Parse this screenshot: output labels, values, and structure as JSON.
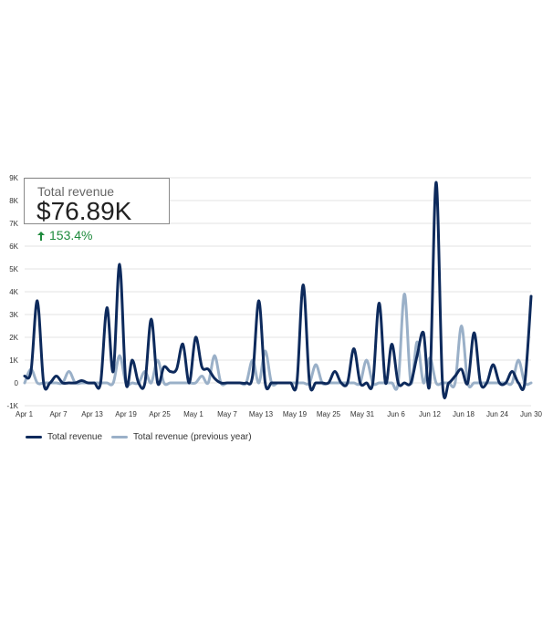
{
  "kpi": {
    "title": "Total revenue",
    "value": "$76.89K",
    "change": "153.4%",
    "change_color": "#1e8a3c"
  },
  "colors": {
    "current": "#0d2a5c",
    "previous": "#9ab0c8",
    "grid": "#e3e3e3"
  },
  "chart_data": {
    "type": "line",
    "title": "",
    "xlabel": "",
    "ylabel": "",
    "ylim": [
      -1000,
      9000
    ],
    "y_ticks": [
      "-1K",
      "0",
      "1K",
      "2K",
      "3K",
      "4K",
      "5K",
      "6K",
      "7K",
      "8K",
      "9K"
    ],
    "x_ticks": [
      "Apr 1",
      "Apr 7",
      "Apr 13",
      "Apr 19",
      "Apr 25",
      "May 1",
      "May 7",
      "May 13",
      "May 19",
      "May 25",
      "May 31",
      "Jun 6",
      "Jun 12",
      "Jun 18",
      "Jun 24",
      "Jun 30"
    ],
    "grid": "horizontal",
    "legend_position": "bottom-left",
    "series": [
      {
        "name": "Total revenue",
        "values": [
          300,
          500,
          3600,
          0,
          0,
          300,
          0,
          0,
          0,
          100,
          0,
          0,
          0,
          3300,
          500,
          5200,
          0,
          1000,
          0,
          0,
          2800,
          0,
          700,
          500,
          600,
          1700,
          0,
          2000,
          700,
          600,
          200,
          0,
          0,
          0,
          0,
          0,
          300,
          3600,
          0,
          0,
          0,
          0,
          0,
          0,
          4300,
          0,
          0,
          0,
          0,
          500,
          0,
          0,
          1500,
          0,
          0,
          0,
          3500,
          0,
          1700,
          0,
          0,
          0,
          1200,
          2200,
          0,
          8800,
          0,
          0,
          300,
          600,
          0,
          2200,
          0,
          0,
          800,
          0,
          0,
          500,
          0,
          0,
          3800
        ]
      },
      {
        "name": "Total revenue (previous year)",
        "values": [
          0,
          600,
          0,
          0,
          0,
          0,
          0,
          500,
          0,
          0,
          0,
          0,
          0,
          0,
          0,
          1200,
          0,
          0,
          0,
          500,
          0,
          1000,
          0,
          0,
          0,
          0,
          0,
          0,
          300,
          0,
          1200,
          0,
          0,
          0,
          0,
          0,
          1000,
          0,
          1400,
          0,
          0,
          0,
          0,
          0,
          0,
          0,
          800,
          0,
          0,
          0,
          0,
          0,
          0,
          0,
          1000,
          0,
          0,
          0,
          0,
          0,
          3900,
          0,
          1800,
          0,
          1100,
          0,
          0,
          0,
          0,
          2500,
          0,
          0,
          0,
          0,
          0,
          0,
          0,
          0,
          1000,
          0,
          0
        ]
      }
    ]
  },
  "legend": [
    {
      "label": "Total revenue"
    },
    {
      "label": "Total revenue (previous year)"
    }
  ]
}
